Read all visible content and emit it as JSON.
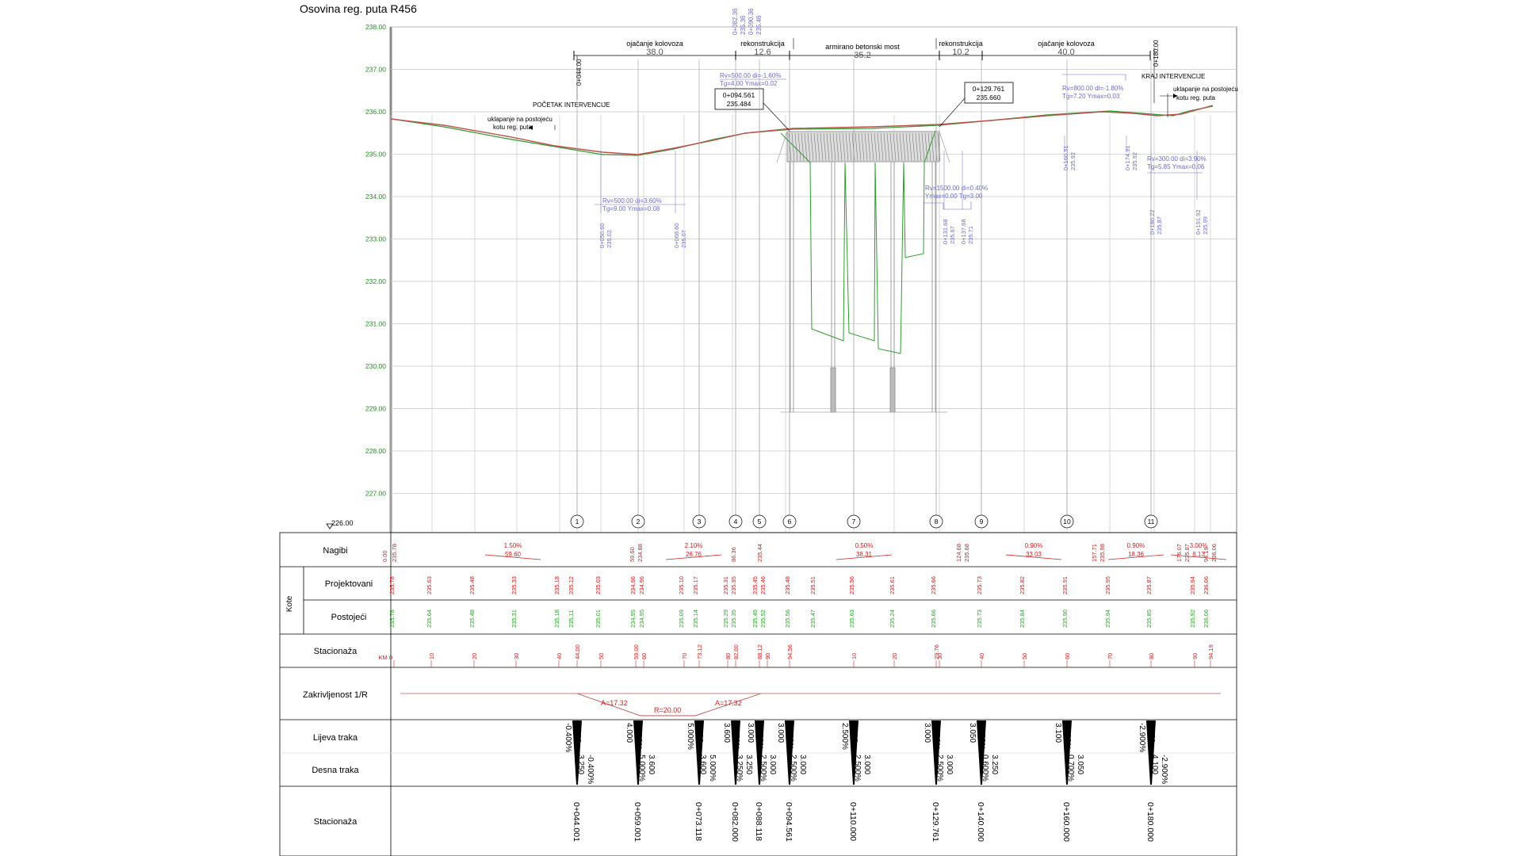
{
  "title": "Osovina reg. puta R456",
  "elevation_axis": {
    "labels": [
      "238.00",
      "237.00",
      "236.00",
      "235.00",
      "234.00",
      "233.00",
      "232.00",
      "231.00",
      "230.00",
      "229.00",
      "228.00",
      "227.00"
    ],
    "datum": "226.00"
  },
  "segments": [
    {
      "label": "ojačanje kolovoza",
      "length": "38.0"
    },
    {
      "label": "rekonstrukcija",
      "length": "12.6"
    },
    {
      "label": "armirano betonski most",
      "length": "35.2"
    },
    {
      "label": "rekonstrukcija",
      "length": "10.2"
    },
    {
      "label": "ojačanje kolovoza",
      "length": "40.0"
    }
  ],
  "annotations": {
    "start_station": "0+044.00",
    "start_text": "POČETAK INTERVENCIJE",
    "end_station": "0+180.00",
    "end_text": "KRAJ INTERVENCIJE",
    "tie_left_1": "uklapanje na postojeću",
    "tie_left_2": "kotu reg. puta",
    "tie_right_1": "uklapanje na postojeću",
    "tie_right_2": "kotu reg. puta",
    "box1_line1": "0+094.561",
    "box1_line2": "235.484",
    "box2_line1": "0+129.761",
    "box2_line2": "235.660",
    "top_st1": "0+082.36",
    "top_el1": "235.36",
    "top_st2": "0+090.36",
    "top_el2": "235.46"
  },
  "vertical_curves": [
    {
      "l1": "Rv=500.00  di=-1.60%",
      "l2": "Tg=4.00       Ymax=0.02"
    },
    {
      "l1": "Rv=500.00  di=3.60%",
      "l2": "Tg=9.00    Ymax=0.08"
    },
    {
      "l1": "Rv=1500.00  di=0.40%",
      "l2": "Ymax=0.00   Tg=3.00"
    },
    {
      "l1": "Rv=800.00  di=-1.80%",
      "l2": "Tg=7.20    Ymax=0.03"
    },
    {
      "l1": "Rv=300.00  di=3.90%",
      "l2": "Tg=5.85    Ymax=0.06"
    }
  ],
  "point_labels": [
    {
      "st": "0+050.60",
      "el": "235.02"
    },
    {
      "st": "0+068.60",
      "el": "235.07"
    },
    {
      "st": "0+131.68",
      "el": "235.67"
    },
    {
      "st": "0+137.68",
      "el": "235.71"
    },
    {
      "st": "0+160.51",
      "el": "235.92"
    },
    {
      "st": "0+174.91",
      "el": "235.92"
    },
    {
      "st": "0+180.22",
      "el": "235.87"
    },
    {
      "st": "0+191.92",
      "el": "235.99"
    }
  ],
  "section_markers": [
    "1",
    "2",
    "3",
    "4",
    "5",
    "6",
    "7",
    "8",
    "9",
    "10",
    "11"
  ],
  "table": {
    "row_nagibi": "Nagibi",
    "row_kote": "Kote",
    "row_projektovani": "Projektovani",
    "row_postojeci": "Postojeći",
    "row_stacionaza": "Stacionaža",
    "row_zakrivljenost": "Zakrivljenost 1/R",
    "row_lijeva": "Lijeva traka",
    "row_desna": "Desna traka",
    "row_stacionaza2": "Stacionaža"
  },
  "nagibi": {
    "boundary_values": [
      "0.00",
      "235.78",
      "59.60",
      "234.88",
      "86.36",
      "235.44",
      "124.68",
      "235.68",
      "157.71",
      "235.98",
      "176.07",
      "235.87",
      "94.19",
      "236.06"
    ],
    "slopes": [
      {
        "pct": "1.50%",
        "len": "59.60"
      },
      {
        "pct": "2.10%",
        "len": "26.76"
      },
      {
        "pct": "0.50%",
        "len": "38.31"
      },
      {
        "pct": "0.90%",
        "len": "33.03"
      },
      {
        "pct": "0.90%",
        "len": "18.36"
      },
      {
        "pct": "3.00%",
        "len": "8.13"
      }
    ]
  },
  "projected_elevations": [
    "235.78",
    "235.63",
    "235.48",
    "235.33",
    "235.18",
    "235.12",
    "235.03",
    "234.96",
    "234.96",
    "235.10",
    "235.17",
    "235.31",
    "235.35",
    "235.45",
    "235.46",
    "235.48",
    "235.51",
    "235.56",
    "235.61",
    "235.66",
    "235.73",
    "235.82",
    "235.91",
    "235.95",
    "235.87",
    "235.94",
    "236.06"
  ],
  "existing_elevations": [
    "235.78",
    "235.64",
    "235.48",
    "235.31",
    "235.18",
    "235.11",
    "235.01",
    "234.95",
    "234.95",
    "235.09",
    "235.14",
    "235.29",
    "235.35",
    "235.49",
    "235.52",
    "235.56",
    "235.47",
    "235.63",
    "235.24",
    "235.66",
    "235.73",
    "235.84",
    "235.90",
    "235.94",
    "235.85",
    "235.92",
    "236.06"
  ],
  "stations_row": [
    "KM 0",
    "10",
    "20",
    "30",
    "40",
    "44.00",
    "50",
    "59.00",
    "60",
    "70",
    "73.12",
    "80",
    "82.00",
    "88.12",
    "90",
    "94.56",
    "10",
    "20",
    "29.76",
    "30",
    "40",
    "50",
    "60",
    "70",
    "80",
    "90",
    "94.19"
  ],
  "curvature": {
    "a1": "A=17.32",
    "r": "R=20.00",
    "a2": "A=17.32"
  },
  "lane_left": [
    {
      "top": "-0.400%",
      "bot": "4.000"
    },
    {
      "top": "4.000",
      "bot": "5.000%"
    },
    {
      "top": "5.000%",
      "bot": "4.000"
    },
    {
      "top": "3.600",
      "bot": "3.250%"
    },
    {
      "top": "3.000",
      "bot": "2.500%"
    },
    {
      "top": "3.000",
      "bot": "2.500%"
    },
    {
      "top": "2.500%",
      "bot": "3.000"
    },
    {
      "top": "3.000",
      "bot": "2.500%"
    },
    {
      "top": "3.050",
      "bot": "0.600%"
    },
    {
      "top": "3.100",
      "bot": "0.700%"
    },
    {
      "top": "-2.900%",
      "bot": "8.050"
    }
  ],
  "lane_right": [
    {
      "top": "3.250",
      "bot": "-0.400%"
    },
    {
      "top": "5.000%",
      "bot": "3.600"
    },
    {
      "top": "3.600",
      "bot": "5.000%"
    },
    {
      "top": "3.250%",
      "bot": "3.250"
    },
    {
      "top": "2.500%",
      "bot": "3.000"
    },
    {
      "top": "2.500%",
      "bot": "3.000"
    },
    {
      "top": "2.500%",
      "bot": "3.000"
    },
    {
      "top": "2.500%",
      "bot": "3.000"
    },
    {
      "top": "0.600%",
      "bot": "3.250"
    },
    {
      "top": "0.700%",
      "bot": "3.050"
    },
    {
      "top": "4.100",
      "bot": "-2.900%"
    }
  ],
  "chainage": [
    "0+044.001",
    "0+059.001",
    "0+073.118",
    "0+082.000",
    "0+088.118",
    "0+094.561",
    "0+110.000",
    "0+129.761",
    "0+140.000",
    "0+160.000",
    "0+180.000"
  ],
  "colors": {
    "design": "#c0504d",
    "existing": "#2e9e2e",
    "annotation": "#6b6bcf",
    "grid": "#b8b8b8",
    "axis": "#1f8f1f",
    "table_red": "#d32020"
  }
}
